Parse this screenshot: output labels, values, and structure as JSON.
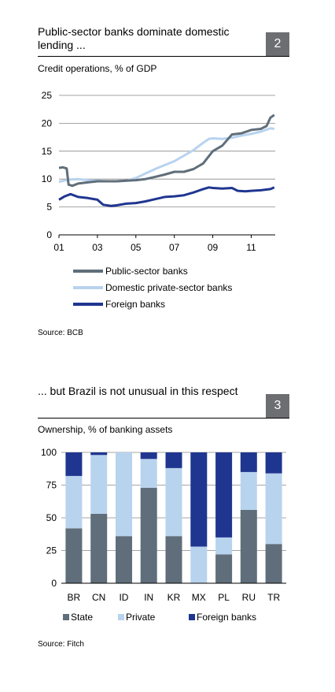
{
  "chart_data": [
    {
      "type": "line",
      "panel_number": "2",
      "title": "Public-sector banks dominate domestic lending ...",
      "subtitle": "Credit operations, % of GDP",
      "source": "Source: BCB",
      "xlabel": "",
      "ylabel": "",
      "xlim": [
        2001,
        2012.25
      ],
      "ylim": [
        0,
        25
      ],
      "yticks": [
        0,
        5,
        10,
        15,
        20,
        25
      ],
      "xtick_labels": [
        "01",
        "03",
        "05",
        "07",
        "09",
        "11"
      ],
      "xtick_values": [
        2001,
        2003,
        2005,
        2007,
        2009,
        2011
      ],
      "grid": true,
      "legend_position": "bottom",
      "series": [
        {
          "name": "Public-sector banks",
          "color": "#5f6e7a",
          "x": [
            2001.0,
            2001.2,
            2001.4,
            2001.5,
            2001.7,
            2002.0,
            2002.5,
            2003.0,
            2003.5,
            2004.0,
            2004.5,
            2005.0,
            2005.5,
            2006.0,
            2006.5,
            2007.0,
            2007.5,
            2008.0,
            2008.5,
            2009.0,
            2009.5,
            2009.8,
            2010.0,
            2010.5,
            2011.0,
            2011.5,
            2011.8,
            2012.0,
            2012.2
          ],
          "y": [
            12.0,
            12.1,
            11.9,
            9.0,
            8.8,
            9.2,
            9.4,
            9.6,
            9.6,
            9.6,
            9.7,
            9.8,
            10.0,
            10.4,
            10.8,
            11.3,
            11.3,
            11.8,
            12.8,
            15.0,
            16.0,
            17.2,
            18.0,
            18.2,
            18.8,
            19.0,
            19.5,
            21.0,
            21.5
          ]
        },
        {
          "name": "Domestic private-sector banks",
          "color": "#b8d3ee",
          "x": [
            2001.0,
            2001.5,
            2002.0,
            2002.5,
            2003.0,
            2003.5,
            2004.0,
            2004.5,
            2005.0,
            2005.5,
            2006.0,
            2006.5,
            2007.0,
            2007.5,
            2008.0,
            2008.5,
            2008.8,
            2009.0,
            2009.5,
            2010.0,
            2010.5,
            2011.0,
            2011.5,
            2012.0,
            2012.2
          ],
          "y": [
            9.5,
            9.9,
            10.0,
            9.8,
            9.7,
            9.6,
            9.6,
            9.7,
            10.2,
            11.0,
            11.8,
            12.5,
            13.2,
            14.2,
            15.2,
            16.5,
            17.2,
            17.3,
            17.2,
            17.4,
            17.8,
            18.1,
            18.5,
            19.1,
            19.0
          ]
        },
        {
          "name": "Foreign banks",
          "color": "#1f3690",
          "x": [
            2001.0,
            2001.3,
            2001.6,
            2002.0,
            2002.5,
            2003.0,
            2003.3,
            2003.7,
            2004.0,
            2004.5,
            2005.0,
            2005.5,
            2006.0,
            2006.5,
            2007.0,
            2007.5,
            2008.0,
            2008.5,
            2008.8,
            2009.0,
            2009.5,
            2010.0,
            2010.3,
            2010.7,
            2011.0,
            2011.5,
            2012.0,
            2012.2
          ],
          "y": [
            6.3,
            6.9,
            7.3,
            6.8,
            6.6,
            6.3,
            5.4,
            5.2,
            5.3,
            5.6,
            5.7,
            6.0,
            6.4,
            6.8,
            6.9,
            7.1,
            7.6,
            8.2,
            8.5,
            8.4,
            8.3,
            8.4,
            7.9,
            7.8,
            7.9,
            8.0,
            8.2,
            8.5
          ]
        }
      ]
    },
    {
      "type": "bar",
      "stacked": true,
      "panel_number": "3",
      "title": "... but Brazil is not unusual in this respect",
      "subtitle": "Ownership, % of banking assets",
      "source": "Source: Fitch",
      "xlabel": "",
      "ylabel": "",
      "ylim": [
        0,
        100
      ],
      "yticks": [
        0,
        25,
        50,
        75,
        100
      ],
      "grid": true,
      "legend_position": "bottom",
      "categories": [
        "BR",
        "CN",
        "ID",
        "IN",
        "KR",
        "MX",
        "PL",
        "RU",
        "TR"
      ],
      "series": [
        {
          "name": "State",
          "color": "#5f6e7a",
          "values": [
            42,
            53,
            36,
            73,
            36,
            0,
            22,
            56,
            30
          ]
        },
        {
          "name": "Private",
          "color": "#b8d3ee",
          "values": [
            40,
            45,
            64,
            22,
            52,
            28,
            13,
            29,
            54
          ]
        },
        {
          "name": "Foreign banks",
          "color": "#1f3690",
          "values": [
            18,
            2,
            0,
            5,
            12,
            72,
            65,
            15,
            16
          ]
        }
      ]
    }
  ]
}
